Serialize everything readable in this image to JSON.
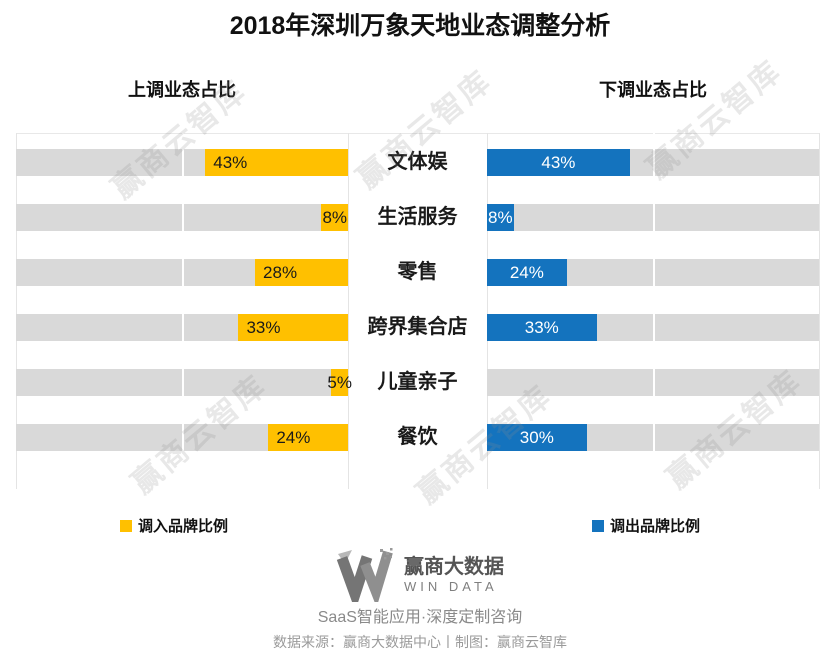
{
  "title": "2018年深圳万象天地业态调整分析",
  "headers": {
    "left": "上调业态占比",
    "right": "下调业态占比"
  },
  "chart_data": {
    "type": "bar",
    "variant": "diverging-tornado",
    "categories": [
      "文体娱",
      "生活服务",
      "零售",
      "跨界集合店",
      "儿童亲子",
      "餐饮"
    ],
    "series": [
      {
        "name": "调入品牌比例",
        "side": "left",
        "color": "#FFC000",
        "values": [
          43,
          8,
          28,
          33,
          5,
          24
        ]
      },
      {
        "name": "调出品牌比例",
        "side": "right",
        "color": "#1473BE",
        "values": [
          43,
          8,
          24,
          33,
          0,
          30
        ]
      }
    ],
    "unit": "%",
    "axis_max": 100,
    "track_color": "#D9D9D9",
    "value_labels_shown": true,
    "legend_position": "bottom"
  },
  "legend": [
    {
      "label": "调入品牌比例",
      "color": "#FFC000"
    },
    {
      "label": "调出品牌比例",
      "color": "#1473BE"
    }
  ],
  "watermark": {
    "text": "赢商云智库"
  },
  "footer": {
    "logo_cn": "赢商大数据",
    "logo_en": "WIN DATA",
    "tagline": "SaaS智能应用·深度定制咨询",
    "source": "数据来源：赢商大数据中心丨制图：赢商云智库"
  },
  "colors": {
    "bar_in": "#FFC000",
    "bar_out": "#1473BE",
    "track": "#D9D9D9",
    "title_text": "#111111",
    "footer_text": "#9A9A9A"
  }
}
